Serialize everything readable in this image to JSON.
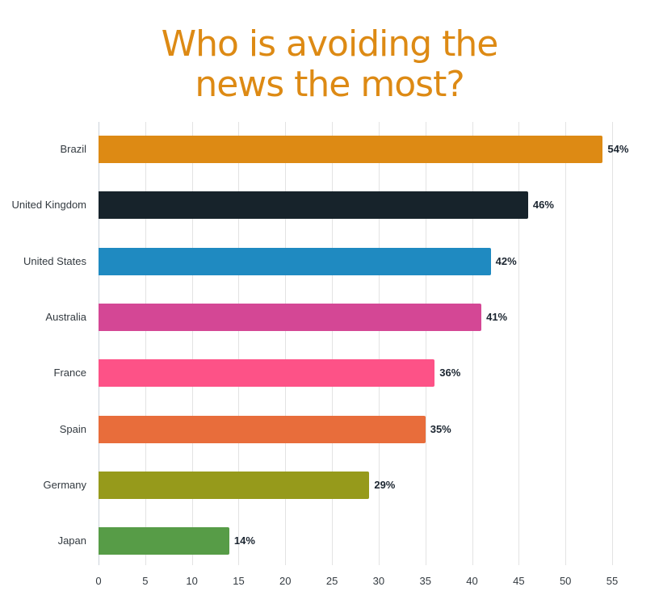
{
  "title": {
    "line1": "Who is avoiding the",
    "line2": "news the most?"
  },
  "chart_data": {
    "type": "bar",
    "orientation": "horizontal",
    "title": "Who is avoiding the news the most?",
    "xlabel": "",
    "ylabel": "",
    "xlim": [
      0,
      55
    ],
    "grid": true,
    "legend": null,
    "categories": [
      "Brazil",
      "United Kingdom",
      "United States",
      "Australia",
      "France",
      "Spain",
      "Germany",
      "Japan"
    ],
    "values": [
      54,
      46,
      42,
      41,
      36,
      35,
      29,
      14
    ],
    "value_labels": [
      "54%",
      "46%",
      "42%",
      "41%",
      "36%",
      "35%",
      "29%",
      "14%"
    ],
    "colors": [
      "#dd8a14",
      "#17232b",
      "#1f8ac1",
      "#d44795",
      "#fd5287",
      "#e86d3b",
      "#969a1b",
      "#579c47"
    ],
    "x_ticks": [
      "0",
      "5",
      "10",
      "15",
      "20",
      "25",
      "30",
      "35",
      "40",
      "45",
      "50",
      "55"
    ]
  }
}
